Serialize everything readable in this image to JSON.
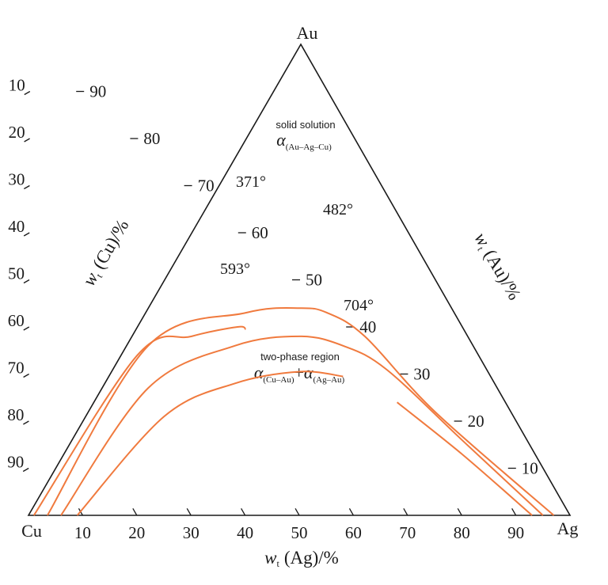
{
  "vertices": {
    "top": "Au",
    "left": "Cu",
    "right": "Ag"
  },
  "axes": {
    "bottom": {
      "variable": "w",
      "subscript": "t",
      "element": "(Ag)/%",
      "ticks": [
        "10",
        "20",
        "30",
        "40",
        "50",
        "60",
        "70",
        "80",
        "90"
      ]
    },
    "left": {
      "variable": "w",
      "subscript": "t",
      "element": "(Cu)/%",
      "ticks": [
        "10",
        "20",
        "30",
        "40",
        "50",
        "60",
        "70",
        "80",
        "90"
      ]
    },
    "right": {
      "variable": "w",
      "subscript": "t",
      "element": "(Au)/%",
      "ticks": [
        "10",
        "20",
        "30",
        "40",
        "50",
        "60",
        "70",
        "80",
        "90"
      ]
    }
  },
  "regions": {
    "solid_solution": {
      "label": "solid solution",
      "phase": "α",
      "phase_sub": "(Au–Ag–Cu)"
    },
    "two_phase": {
      "label": "two-phase region",
      "phase1": "α",
      "phase1_sub": "(Cu–Au)",
      "plus": "+",
      "phase2": "α",
      "phase2_sub": "(Ag–Au)"
    }
  },
  "isotherms": [
    {
      "label": "371°",
      "temperature": 371,
      "points": [
        [
          1,
          0
        ],
        [
          20,
          34
        ],
        [
          30,
          38
        ],
        [
          38.5,
          40
        ],
        [
          40,
          39.5
        ]
      ]
    },
    {
      "label": "482°",
      "temperature": 482,
      "points": [
        [
          3.5,
          0
        ],
        [
          22,
          36
        ],
        [
          40,
          43
        ],
        [
          50,
          44
        ],
        [
          55,
          43
        ],
        [
          62,
          38
        ],
        [
          75,
          22
        ],
        [
          97,
          0
        ]
      ]
    },
    {
      "label": "593°",
      "temperature": 593,
      "points": [
        [
          6,
          0
        ],
        [
          22,
          27
        ],
        [
          38,
          36
        ],
        [
          50,
          38
        ],
        [
          58,
          36
        ],
        [
          66,
          31
        ],
        [
          80,
          16
        ],
        [
          95,
          0
        ]
      ]
    },
    {
      "label": "704°",
      "temperature": 704,
      "points": [
        [
          9,
          0
        ],
        [
          25,
          21
        ],
        [
          38,
          28
        ],
        [
          50,
          30.5
        ],
        [
          58,
          29.5
        ],
        [
          68,
          24
        ],
        [
          80,
          13
        ],
        [
          93,
          0
        ]
      ]
    }
  ],
  "line_color": "#f07a3e"
}
